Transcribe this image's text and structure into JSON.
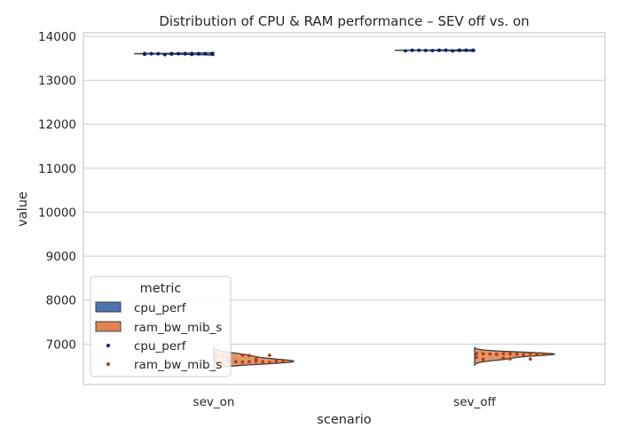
{
  "chart_data": {
    "type": "violin",
    "title": "Distribution of CPU & RAM performance – SEV off vs. on",
    "xlabel": "scenario",
    "ylabel": "value",
    "categories": [
      "sev_on",
      "sev_off"
    ],
    "ylim": [
      6080,
      14080
    ],
    "yticks": [
      7000,
      8000,
      9000,
      10000,
      11000,
      12000,
      13000,
      14000
    ],
    "grid": true,
    "legend": {
      "title": "metric",
      "placement": "lower-left",
      "entries": [
        {
          "label": "cpu_perf",
          "kind": "patch",
          "color": "#4c72b0"
        },
        {
          "label": "ram_bw_mib_s",
          "kind": "patch",
          "color": "#dd8452"
        },
        {
          "label": "cpu_perf",
          "kind": "dot",
          "color": "#001c7f"
        },
        {
          "label": "ram_bw_mib_s",
          "kind": "dot",
          "color": "#b1400d"
        }
      ]
    },
    "series": [
      {
        "name": "cpu_perf",
        "violin_color": "#4c72b0",
        "point_color": "#001c7f",
        "values": {
          "sev_on": [
            13610,
            13608,
            13606,
            13605,
            13603,
            13601,
            13598,
            13594,
            13590,
            13586,
            13582,
            13598,
            13600,
            13602,
            13604,
            13605,
            13606,
            13607,
            13608,
            13609,
            13610
          ],
          "sev_off": [
            13684,
            13683,
            13682,
            13681,
            13680,
            13679,
            13677,
            13674,
            13670,
            13667,
            13678,
            13680,
            13681,
            13682,
            13683,
            13684,
            13685,
            13686
          ]
        }
      },
      {
        "name": "ram_bw_mib_s",
        "violin_color": "#dd8452",
        "point_color": "#b1400d",
        "values": {
          "sev_on": [
            6750,
            6748,
            6745,
            6742,
            6740,
            6620,
            6615,
            6610,
            6605,
            6600,
            6598,
            6595,
            6590,
            6585,
            6560,
            6600,
            6610,
            6620,
            6660
          ],
          "sev_off": [
            6785,
            6782,
            6780,
            6778,
            6776,
            6774,
            6772,
            6770,
            6768,
            6766,
            6760,
            6700,
            6680,
            6660,
            6650,
            6665,
            6780
          ]
        }
      }
    ]
  }
}
